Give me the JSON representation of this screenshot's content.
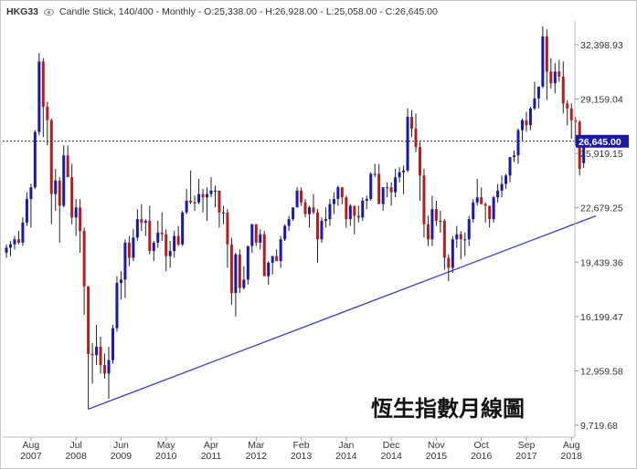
{
  "header": {
    "symbol": "HKG33",
    "description": "Candle Stick, 140/400 - Monthly - O:25,338.00 - H:26,928.00 - L:25,058.00 - C:26,645.00"
  },
  "chart_data": {
    "type": "candlestick",
    "title": "恆生指數月線圖",
    "ylim": [
      9200,
      35200
    ],
    "y_ticks": [
      "32,398.93",
      "29,159.04",
      "25,919.15",
      "22,679.25",
      "19,439.36",
      "16,199.47",
      "12,959.58",
      "9,719.68"
    ],
    "x_ticks": [
      {
        "line1": "Aug",
        "line2": "2007"
      },
      {
        "line1": "Jul",
        "line2": "2008"
      },
      {
        "line1": "Jun",
        "line2": "2009"
      },
      {
        "line1": "May",
        "line2": "2010"
      },
      {
        "line1": "Apr",
        "line2": "2011"
      },
      {
        "line1": "Mar",
        "line2": "2012"
      },
      {
        "line1": "Feb",
        "line2": "2013"
      },
      {
        "line1": "Jan",
        "line2": "2014"
      },
      {
        "line1": "Dec",
        "line2": "2014"
      },
      {
        "line1": "Nov",
        "line2": "2015"
      },
      {
        "line1": "Oct",
        "line2": "2016"
      },
      {
        "line1": "Sep",
        "line2": "2017"
      },
      {
        "line1": "Aug",
        "line2": "2018"
      }
    ],
    "last_close": 26645,
    "last_close_label": "26,645.00",
    "up_color": "#1a1aa6",
    "down_color": "#b02020",
    "trendline": {
      "from": {
        "date": "2008-10",
        "value": 10676
      },
      "to": {
        "date": "2019-02",
        "value": 22200
      },
      "color": "#3333bb"
    },
    "candles": [
      {
        "date": "2007-02",
        "o": 20000,
        "h": 20500,
        "l": 19700,
        "c": 20300
      },
      {
        "date": "2007-03",
        "o": 20300,
        "h": 20700,
        "l": 19800,
        "c": 20500
      },
      {
        "date": "2007-04",
        "o": 20500,
        "h": 21000,
        "l": 20200,
        "c": 20800
      },
      {
        "date": "2007-05",
        "o": 20800,
        "h": 21300,
        "l": 20500,
        "c": 20600
      },
      {
        "date": "2007-06",
        "o": 20600,
        "h": 22100,
        "l": 20400,
        "c": 21800
      },
      {
        "date": "2007-07",
        "o": 21800,
        "h": 23600,
        "l": 21600,
        "c": 23200
      },
      {
        "date": "2007-08",
        "o": 23200,
        "h": 24100,
        "l": 21500,
        "c": 23900
      },
      {
        "date": "2007-09",
        "o": 23900,
        "h": 27300,
        "l": 23800,
        "c": 27200
      },
      {
        "date": "2007-10",
        "o": 27200,
        "h": 31900,
        "l": 27000,
        "c": 31400
      },
      {
        "date": "2007-11",
        "o": 31400,
        "h": 31600,
        "l": 26900,
        "c": 28700
      },
      {
        "date": "2007-12",
        "o": 28700,
        "h": 29000,
        "l": 26400,
        "c": 27900
      },
      {
        "date": "2008-01",
        "o": 27900,
        "h": 28000,
        "l": 21700,
        "c": 23500
      },
      {
        "date": "2008-02",
        "o": 23500,
        "h": 25000,
        "l": 22500,
        "c": 24300
      },
      {
        "date": "2008-03",
        "o": 24300,
        "h": 24500,
        "l": 20600,
        "c": 22800
      },
      {
        "date": "2008-04",
        "o": 22800,
        "h": 26400,
        "l": 22700,
        "c": 25800
      },
      {
        "date": "2008-05",
        "o": 25800,
        "h": 26400,
        "l": 24700,
        "c": 24500
      },
      {
        "date": "2008-06",
        "o": 24500,
        "h": 25300,
        "l": 21700,
        "c": 22100
      },
      {
        "date": "2008-07",
        "o": 22100,
        "h": 23200,
        "l": 21000,
        "c": 22700
      },
      {
        "date": "2008-08",
        "o": 22700,
        "h": 23200,
        "l": 20000,
        "c": 21300
      },
      {
        "date": "2008-09",
        "o": 21300,
        "h": 21500,
        "l": 16300,
        "c": 18000
      },
      {
        "date": "2008-10",
        "o": 18000,
        "h": 18000,
        "l": 10676,
        "c": 13970
      },
      {
        "date": "2008-11",
        "o": 13970,
        "h": 14600,
        "l": 12200,
        "c": 13900
      },
      {
        "date": "2008-12",
        "o": 13900,
        "h": 15700,
        "l": 13300,
        "c": 14400
      },
      {
        "date": "2009-01",
        "o": 14400,
        "h": 15000,
        "l": 12800,
        "c": 13300
      },
      {
        "date": "2009-02",
        "o": 13300,
        "h": 14000,
        "l": 12500,
        "c": 12800
      },
      {
        "date": "2009-03",
        "o": 12800,
        "h": 14400,
        "l": 11300,
        "c": 13600
      },
      {
        "date": "2009-04",
        "o": 13600,
        "h": 15700,
        "l": 13400,
        "c": 15500
      },
      {
        "date": "2009-05",
        "o": 15500,
        "h": 18600,
        "l": 15300,
        "c": 18200
      },
      {
        "date": "2009-06",
        "o": 18200,
        "h": 18900,
        "l": 17200,
        "c": 18400
      },
      {
        "date": "2009-07",
        "o": 18400,
        "h": 20800,
        "l": 17300,
        "c": 20600
      },
      {
        "date": "2009-08",
        "o": 20600,
        "h": 21000,
        "l": 19200,
        "c": 19700
      },
      {
        "date": "2009-09",
        "o": 19700,
        "h": 21400,
        "l": 19500,
        "c": 20900
      },
      {
        "date": "2009-10",
        "o": 20900,
        "h": 22600,
        "l": 20700,
        "c": 22000
      },
      {
        "date": "2009-11",
        "o": 22000,
        "h": 22900,
        "l": 21300,
        "c": 21800
      },
      {
        "date": "2009-12",
        "o": 21800,
        "h": 22000,
        "l": 21000,
        "c": 21900
      },
      {
        "date": "2010-01",
        "o": 21900,
        "h": 22800,
        "l": 19900,
        "c": 20100
      },
      {
        "date": "2010-02",
        "o": 20100,
        "h": 20700,
        "l": 19500,
        "c": 20600
      },
      {
        "date": "2010-03",
        "o": 20600,
        "h": 21900,
        "l": 20300,
        "c": 21200
      },
      {
        "date": "2010-04",
        "o": 21200,
        "h": 22400,
        "l": 20700,
        "c": 21100
      },
      {
        "date": "2010-05",
        "o": 21100,
        "h": 21400,
        "l": 18900,
        "c": 19800
      },
      {
        "date": "2010-06",
        "o": 19800,
        "h": 20700,
        "l": 19100,
        "c": 20100
      },
      {
        "date": "2010-07",
        "o": 20100,
        "h": 21300,
        "l": 19700,
        "c": 21000
      },
      {
        "date": "2010-08",
        "o": 21000,
        "h": 21600,
        "l": 20400,
        "c": 20500
      },
      {
        "date": "2010-09",
        "o": 20500,
        "h": 22500,
        "l": 20400,
        "c": 22400
      },
      {
        "date": "2010-10",
        "o": 22400,
        "h": 23800,
        "l": 22300,
        "c": 23100
      },
      {
        "date": "2010-11",
        "o": 23100,
        "h": 24900,
        "l": 22900,
        "c": 23000
      },
      {
        "date": "2010-12",
        "o": 23000,
        "h": 23400,
        "l": 22500,
        "c": 23000
      },
      {
        "date": "2011-01",
        "o": 23000,
        "h": 24400,
        "l": 22900,
        "c": 23500
      },
      {
        "date": "2011-02",
        "o": 23500,
        "h": 23800,
        "l": 22400,
        "c": 23300
      },
      {
        "date": "2011-03",
        "o": 23300,
        "h": 23900,
        "l": 21900,
        "c": 23500
      },
      {
        "date": "2011-04",
        "o": 23500,
        "h": 24500,
        "l": 23300,
        "c": 23700
      },
      {
        "date": "2011-05",
        "o": 23700,
        "h": 24000,
        "l": 22700,
        "c": 23700
      },
      {
        "date": "2011-06",
        "o": 23700,
        "h": 23700,
        "l": 21500,
        "c": 22400
      },
      {
        "date": "2011-07",
        "o": 22400,
        "h": 22800,
        "l": 21700,
        "c": 22400
      },
      {
        "date": "2011-08",
        "o": 22400,
        "h": 22600,
        "l": 19100,
        "c": 20500
      },
      {
        "date": "2011-09",
        "o": 20500,
        "h": 20900,
        "l": 16900,
        "c": 17600
      },
      {
        "date": "2011-10",
        "o": 17600,
        "h": 20000,
        "l": 16200,
        "c": 19900
      },
      {
        "date": "2011-11",
        "o": 19900,
        "h": 20200,
        "l": 17600,
        "c": 17900
      },
      {
        "date": "2011-12",
        "o": 17900,
        "h": 19200,
        "l": 17800,
        "c": 18400
      },
      {
        "date": "2012-01",
        "o": 18400,
        "h": 20300,
        "l": 18100,
        "c": 20400
      },
      {
        "date": "2012-02",
        "o": 20400,
        "h": 21700,
        "l": 20000,
        "c": 21700
      },
      {
        "date": "2012-03",
        "o": 21700,
        "h": 21700,
        "l": 20400,
        "c": 20600
      },
      {
        "date": "2012-04",
        "o": 20600,
        "h": 21400,
        "l": 20200,
        "c": 21100
      },
      {
        "date": "2012-05",
        "o": 21100,
        "h": 21300,
        "l": 18700,
        "c": 18600
      },
      {
        "date": "2012-06",
        "o": 18600,
        "h": 19500,
        "l": 18100,
        "c": 19400
      },
      {
        "date": "2012-07",
        "o": 19400,
        "h": 19800,
        "l": 18700,
        "c": 19800
      },
      {
        "date": "2012-08",
        "o": 19800,
        "h": 20200,
        "l": 19500,
        "c": 19500
      },
      {
        "date": "2012-09",
        "o": 19500,
        "h": 21000,
        "l": 19100,
        "c": 20800
      },
      {
        "date": "2012-10",
        "o": 20800,
        "h": 21700,
        "l": 20700,
        "c": 21600
      },
      {
        "date": "2012-11",
        "o": 21600,
        "h": 22200,
        "l": 21300,
        "c": 22000
      },
      {
        "date": "2012-12",
        "o": 22000,
        "h": 22700,
        "l": 21900,
        "c": 22700
      },
      {
        "date": "2013-01",
        "o": 22700,
        "h": 23900,
        "l": 22800,
        "c": 23700
      },
      {
        "date": "2013-02",
        "o": 23700,
        "h": 23900,
        "l": 22800,
        "c": 23000
      },
      {
        "date": "2013-03",
        "o": 23000,
        "h": 23200,
        "l": 22100,
        "c": 22300
      },
      {
        "date": "2013-04",
        "o": 22300,
        "h": 22800,
        "l": 21500,
        "c": 22700
      },
      {
        "date": "2013-05",
        "o": 22700,
        "h": 23500,
        "l": 22300,
        "c": 22400
      },
      {
        "date": "2013-06",
        "o": 22400,
        "h": 22600,
        "l": 19400,
        "c": 20800
      },
      {
        "date": "2013-07",
        "o": 20800,
        "h": 22100,
        "l": 20600,
        "c": 21900
      },
      {
        "date": "2013-08",
        "o": 21900,
        "h": 22700,
        "l": 21500,
        "c": 22000
      },
      {
        "date": "2013-09",
        "o": 22000,
        "h": 23200,
        "l": 21600,
        "c": 22900
      },
      {
        "date": "2013-10",
        "o": 22900,
        "h": 23600,
        "l": 22300,
        "c": 23200
      },
      {
        "date": "2013-11",
        "o": 23200,
        "h": 24000,
        "l": 22800,
        "c": 23900
      },
      {
        "date": "2013-12",
        "o": 23900,
        "h": 23900,
        "l": 22900,
        "c": 23300
      },
      {
        "date": "2014-01",
        "o": 23300,
        "h": 23400,
        "l": 21500,
        "c": 22000
      },
      {
        "date": "2014-02",
        "o": 22000,
        "h": 22900,
        "l": 21600,
        "c": 22800
      },
      {
        "date": "2014-03",
        "o": 22800,
        "h": 22800,
        "l": 21100,
        "c": 22200
      },
      {
        "date": "2014-04",
        "o": 22200,
        "h": 22800,
        "l": 21800,
        "c": 22100
      },
      {
        "date": "2014-05",
        "o": 22100,
        "h": 23300,
        "l": 21900,
        "c": 23100
      },
      {
        "date": "2014-06",
        "o": 23100,
        "h": 23400,
        "l": 22600,
        "c": 23200
      },
      {
        "date": "2014-07",
        "o": 23200,
        "h": 24800,
        "l": 23100,
        "c": 24700
      },
      {
        "date": "2014-08",
        "o": 24700,
        "h": 25300,
        "l": 24500,
        "c": 24700
      },
      {
        "date": "2014-09",
        "o": 24700,
        "h": 25300,
        "l": 22900,
        "c": 22900
      },
      {
        "date": "2014-10",
        "o": 22900,
        "h": 23900,
        "l": 22500,
        "c": 23900
      },
      {
        "date": "2014-11",
        "o": 23900,
        "h": 24200,
        "l": 23300,
        "c": 23900
      },
      {
        "date": "2014-12",
        "o": 23900,
        "h": 24200,
        "l": 22800,
        "c": 23600
      },
      {
        "date": "2015-01",
        "o": 23600,
        "h": 25000,
        "l": 23300,
        "c": 24500
      },
      {
        "date": "2015-02",
        "o": 24500,
        "h": 25100,
        "l": 24200,
        "c": 24800
      },
      {
        "date": "2015-03",
        "o": 24800,
        "h": 25200,
        "l": 23500,
        "c": 24900
      },
      {
        "date": "2015-04",
        "o": 24900,
        "h": 28600,
        "l": 24800,
        "c": 28100
      },
      {
        "date": "2015-05",
        "o": 28100,
        "h": 28500,
        "l": 26900,
        "c": 27400
      },
      {
        "date": "2015-06",
        "o": 27400,
        "h": 28300,
        "l": 26000,
        "c": 26300
      },
      {
        "date": "2015-07",
        "o": 26300,
        "h": 26600,
        "l": 23100,
        "c": 24600
      },
      {
        "date": "2015-08",
        "o": 24600,
        "h": 25000,
        "l": 20900,
        "c": 21700
      },
      {
        "date": "2015-09",
        "o": 21700,
        "h": 22200,
        "l": 20400,
        "c": 20800
      },
      {
        "date": "2015-10",
        "o": 20800,
        "h": 23400,
        "l": 20400,
        "c": 22600
      },
      {
        "date": "2015-11",
        "o": 22600,
        "h": 23100,
        "l": 21600,
        "c": 21900
      },
      {
        "date": "2015-12",
        "o": 21900,
        "h": 22500,
        "l": 21200,
        "c": 21900
      },
      {
        "date": "2016-01",
        "o": 21900,
        "h": 22000,
        "l": 19000,
        "c": 19700
      },
      {
        "date": "2016-02",
        "o": 19700,
        "h": 19900,
        "l": 18300,
        "c": 19100
      },
      {
        "date": "2016-03",
        "o": 19100,
        "h": 21000,
        "l": 18800,
        "c": 20800
      },
      {
        "date": "2016-04",
        "o": 20800,
        "h": 21600,
        "l": 20300,
        "c": 21100
      },
      {
        "date": "2016-05",
        "o": 21100,
        "h": 21300,
        "l": 19600,
        "c": 20800
      },
      {
        "date": "2016-06",
        "o": 20800,
        "h": 21200,
        "l": 19800,
        "c": 20800
      },
      {
        "date": "2016-07",
        "o": 20800,
        "h": 22200,
        "l": 20400,
        "c": 22000
      },
      {
        "date": "2016-08",
        "o": 22000,
        "h": 23200,
        "l": 21800,
        "c": 23000
      },
      {
        "date": "2016-09",
        "o": 23000,
        "h": 24400,
        "l": 22800,
        "c": 23300
      },
      {
        "date": "2016-10",
        "o": 23300,
        "h": 23900,
        "l": 22900,
        "c": 22900
      },
      {
        "date": "2016-11",
        "o": 22900,
        "h": 23000,
        "l": 21800,
        "c": 22800
      },
      {
        "date": "2016-12",
        "o": 22800,
        "h": 22800,
        "l": 21500,
        "c": 22000
      },
      {
        "date": "2017-01",
        "o": 22000,
        "h": 23400,
        "l": 21800,
        "c": 23300
      },
      {
        "date": "2017-02",
        "o": 23300,
        "h": 24100,
        "l": 23000,
        "c": 23700
      },
      {
        "date": "2017-03",
        "o": 23700,
        "h": 24600,
        "l": 23300,
        "c": 24100
      },
      {
        "date": "2017-04",
        "o": 24100,
        "h": 24700,
        "l": 23800,
        "c": 24600
      },
      {
        "date": "2017-05",
        "o": 24600,
        "h": 25700,
        "l": 24200,
        "c": 25700
      },
      {
        "date": "2017-06",
        "o": 25700,
        "h": 26100,
        "l": 25400,
        "c": 25800
      },
      {
        "date": "2017-07",
        "o": 25800,
        "h": 27400,
        "l": 25300,
        "c": 27300
      },
      {
        "date": "2017-08",
        "o": 27300,
        "h": 28000,
        "l": 26700,
        "c": 27900
      },
      {
        "date": "2017-09",
        "o": 27900,
        "h": 28400,
        "l": 27200,
        "c": 27600
      },
      {
        "date": "2017-10",
        "o": 27600,
        "h": 28700,
        "l": 27300,
        "c": 28600
      },
      {
        "date": "2017-11",
        "o": 28600,
        "h": 30200,
        "l": 28500,
        "c": 29200
      },
      {
        "date": "2017-12",
        "o": 29200,
        "h": 29900,
        "l": 28600,
        "c": 29900
      },
      {
        "date": "2018-01",
        "o": 29900,
        "h": 33500,
        "l": 29800,
        "c": 32900
      },
      {
        "date": "2018-02",
        "o": 32900,
        "h": 33300,
        "l": 29100,
        "c": 30800
      },
      {
        "date": "2018-03",
        "o": 30800,
        "h": 31600,
        "l": 29800,
        "c": 30100
      },
      {
        "date": "2018-04",
        "o": 30100,
        "h": 31300,
        "l": 29500,
        "c": 30800
      },
      {
        "date": "2018-05",
        "o": 30800,
        "h": 31500,
        "l": 30200,
        "c": 30500
      },
      {
        "date": "2018-06",
        "o": 30500,
        "h": 31400,
        "l": 28300,
        "c": 28900
      },
      {
        "date": "2018-07",
        "o": 28900,
        "h": 29100,
        "l": 27600,
        "c": 28600
      },
      {
        "date": "2018-08",
        "o": 28600,
        "h": 28900,
        "l": 26800,
        "c": 27900
      },
      {
        "date": "2018-09",
        "o": 27900,
        "h": 28100,
        "l": 26400,
        "c": 27800
      },
      {
        "date": "2018-10",
        "o": 27800,
        "h": 27900,
        "l": 24600,
        "c": 25000
      },
      {
        "date": "2018-11",
        "o": 25338,
        "h": 26928,
        "l": 25058,
        "c": 26645
      }
    ]
  }
}
